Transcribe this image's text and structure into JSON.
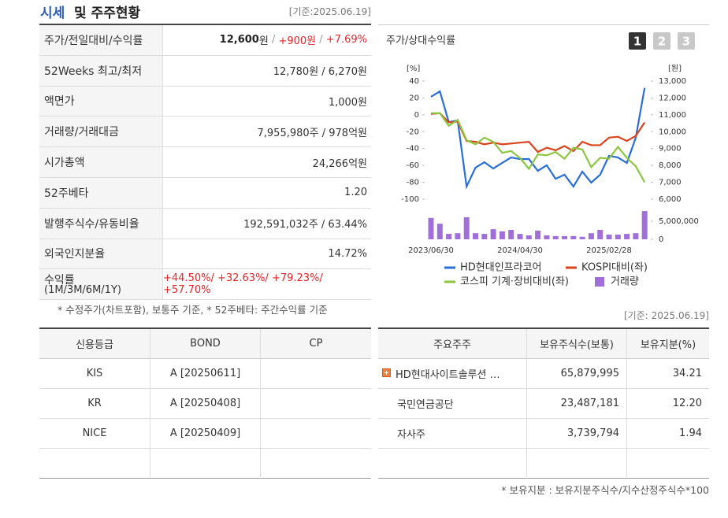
{
  "header": {
    "title_highlight": "시세",
    "title": "및 주주현황",
    "basis": "[기준:2025.06.19]"
  },
  "price_table": {
    "rows": [
      {
        "label": "주가/전일대비/수익률",
        "value_parts": [
          {
            "text": "12,600",
            "style": "bold"
          },
          {
            "text": "원",
            "style": "normal"
          },
          {
            "text": " / ",
            "style": "gray"
          },
          {
            "text": "+900원",
            "style": "red"
          },
          {
            "text": " / ",
            "style": "gray"
          },
          {
            "text": "+7.69%",
            "style": "red"
          }
        ]
      },
      {
        "label": "52Weeks 최고/최저",
        "value": "12,780원 / 6,270원"
      },
      {
        "label": "액면가",
        "value": "1,000원"
      },
      {
        "label": "거래량/거래대금",
        "value": "7,955,980주 / 978억원"
      },
      {
        "label": "시가총액",
        "value": "24,266억원"
      },
      {
        "label": "52주베타",
        "value": "1.20"
      },
      {
        "label": "발행주식수/유동비율",
        "value": "192,591,032주 / 63.44%"
      },
      {
        "label": "외국인지분율",
        "value": "14.72%"
      },
      {
        "label": "수익률",
        "sublabel": "(1M/3M/6M/1Y)",
        "value": "+44.50%/ +32.63%/ +79.23%/ +57.70%",
        "value_style": "red"
      }
    ],
    "footnote": "* 수정주가(차트포함), 보통주 기준, * 52주베타: 주간수익률 기준"
  },
  "chart_controls": {
    "buttons": [
      "1",
      "2",
      "3"
    ],
    "active": 0
  },
  "chart_data": {
    "type": "line",
    "title": "주가/상대수익률",
    "categories": [
      "2023/06/30",
      null,
      null,
      null,
      null,
      null,
      null,
      null,
      null,
      null,
      "2024/04/30",
      null,
      null,
      null,
      null,
      null,
      null,
      null,
      null,
      null,
      "2025/02/28",
      null,
      null,
      null,
      null
    ],
    "ylabel": "[%]",
    "ylim": [
      -100,
      40
    ],
    "yticks": [
      -100,
      -80,
      -60,
      -40,
      -20,
      0,
      20,
      40
    ],
    "y2label": "[원]",
    "y2lim": [
      6000,
      13000
    ],
    "y2ticks": [
      {
        "value": 6000,
        "label": "6,000"
      },
      {
        "value": 7000,
        "label": "7,000"
      },
      {
        "value": 8000,
        "label": "8,000"
      },
      {
        "value": 9000,
        "label": "9,000"
      },
      {
        "value": 10000,
        "label": "10,000"
      },
      {
        "value": 11000,
        "label": "11,000"
      },
      {
        "value": 12000,
        "label": "12,000"
      },
      {
        "value": 13000,
        "label": "13,000"
      }
    ],
    "volume_ylim": [
      0,
      8000000
    ],
    "volume_yticks": [
      0,
      {
        "value": 5000000,
        "label": "5,000,000"
      }
    ],
    "grid": false,
    "series": [
      {
        "name": "HD현대인프라코어",
        "color": "#2a6fd6",
        "axis": "y2",
        "values": [
          12070,
          12390,
          10570,
          10670,
          6750,
          7870,
          8190,
          7820,
          8150,
          8470,
          8380,
          8380,
          7680,
          8010,
          7210,
          7450,
          6750,
          7630,
          6980,
          7450,
          8570,
          8470,
          8150,
          9640,
          12600
        ]
      },
      {
        "name": "KOSPI대비(좌)",
        "color": "#d9431e",
        "values": [
          1,
          2,
          -9,
          -8,
          -31,
          -32,
          -35,
          -33,
          -35,
          -34,
          -33,
          -32,
          -44,
          -39,
          -42,
          -37,
          -43,
          -32,
          -36,
          -36,
          -27,
          -26,
          -31,
          -25,
          -9
        ]
      },
      {
        "name": "코스피 기계·장비대비(좌)",
        "color": "#8cc63f",
        "values": [
          2,
          2,
          -13,
          -6,
          -30,
          -35,
          -27,
          -32,
          -45,
          -43,
          -51,
          -64,
          -47,
          -48,
          -44,
          -52,
          -39,
          -41,
          -62,
          -51,
          -52,
          -38,
          -51,
          -61,
          -80
        ]
      },
      {
        "name": "거래량",
        "color": "#a070d8",
        "type": "bar",
        "axis": "volume",
        "values": [
          5900000,
          4300000,
          1500000,
          1700000,
          6100000,
          1700000,
          1500000,
          2800000,
          2200000,
          2600000,
          1500000,
          1100000,
          2400000,
          1100000,
          900000,
          900000,
          900000,
          700000,
          1700000,
          2600000,
          1300000,
          1300000,
          1500000,
          1700000,
          7800000
        ]
      }
    ]
  },
  "credit_table": {
    "headers": [
      "신용등급",
      "BOND",
      "CP"
    ],
    "rows": [
      [
        "KIS",
        "A [20250611]"
      ],
      [
        "KR",
        "A [20250408]"
      ],
      [
        "NICE",
        "A [20250409]"
      ]
    ]
  },
  "holders_table": {
    "basis": "[기준: 2025.06.19]",
    "headers": [
      "주요주주",
      "보유주식수(보통)",
      "보유지분(%)"
    ],
    "rows": [
      [
        "HD현대사이트솔루션 …",
        "65,879,995",
        "34.21"
      ],
      [
        "국민연금공단",
        "23,487,181",
        "12.20"
      ],
      [
        "자사주",
        "3,739,794",
        "1.94"
      ]
    ],
    "footnote": "* 보유지분 : 보유지분주식수/지수산정주식수*100"
  }
}
